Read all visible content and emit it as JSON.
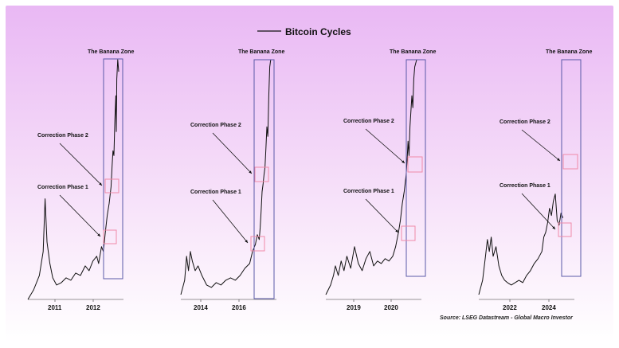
{
  "chart_data": {
    "type": "line",
    "title": "Bitcoin Cycles",
    "source": "Source: LSEG Datastream - Global Macro Investor",
    "colors": {
      "line": "#111111",
      "zone": "#5a5aa8",
      "phase_box": "#f08aa8"
    },
    "panels": [
      {
        "zone_label": "The Banana Zone",
        "phase1_label": "Correction Phase 1",
        "phase2_label": "Correction Phase 2",
        "x_ticks": [
          "2011",
          "2012"
        ],
        "series": [
          [
            0.0,
            0.0
          ],
          [
            0.06,
            0.04
          ],
          [
            0.12,
            0.1
          ],
          [
            0.16,
            0.2
          ],
          [
            0.18,
            0.42
          ],
          [
            0.2,
            0.24
          ],
          [
            0.23,
            0.15
          ],
          [
            0.26,
            0.09
          ],
          [
            0.3,
            0.06
          ],
          [
            0.35,
            0.07
          ],
          [
            0.4,
            0.09
          ],
          [
            0.45,
            0.08
          ],
          [
            0.5,
            0.11
          ],
          [
            0.55,
            0.1
          ],
          [
            0.6,
            0.14
          ],
          [
            0.64,
            0.12
          ],
          [
            0.68,
            0.16
          ],
          [
            0.72,
            0.18
          ],
          [
            0.74,
            0.15
          ],
          [
            0.77,
            0.22
          ],
          [
            0.79,
            0.2
          ],
          [
            0.81,
            0.28
          ],
          [
            0.83,
            0.35
          ],
          [
            0.85,
            0.4
          ],
          [
            0.87,
            0.47
          ],
          [
            0.88,
            0.55
          ],
          [
            0.89,
            0.62
          ],
          [
            0.9,
            0.6
          ],
          [
            0.91,
            0.75
          ],
          [
            0.92,
            0.85
          ],
          [
            0.925,
            0.7
          ],
          [
            0.93,
            0.92
          ],
          [
            0.94,
            1.0
          ],
          [
            0.95,
            0.95
          ]
        ]
      },
      {
        "zone_label": "The Banana Zone",
        "phase1_label": "Correction Phase 1",
        "phase2_label": "Correction Phase 2",
        "x_ticks": [
          "2014",
          "2016"
        ],
        "series": [
          [
            0.0,
            0.02
          ],
          [
            0.04,
            0.08
          ],
          [
            0.06,
            0.18
          ],
          [
            0.08,
            0.12
          ],
          [
            0.1,
            0.2
          ],
          [
            0.12,
            0.16
          ],
          [
            0.15,
            0.12
          ],
          [
            0.18,
            0.14
          ],
          [
            0.22,
            0.1
          ],
          [
            0.27,
            0.06
          ],
          [
            0.32,
            0.05
          ],
          [
            0.37,
            0.07
          ],
          [
            0.42,
            0.06
          ],
          [
            0.47,
            0.08
          ],
          [
            0.52,
            0.09
          ],
          [
            0.57,
            0.08
          ],
          [
            0.62,
            0.1
          ],
          [
            0.67,
            0.13
          ],
          [
            0.72,
            0.15
          ],
          [
            0.75,
            0.2
          ],
          [
            0.78,
            0.23
          ],
          [
            0.8,
            0.27
          ],
          [
            0.82,
            0.25
          ],
          [
            0.83,
            0.3
          ],
          [
            0.84,
            0.37
          ],
          [
            0.85,
            0.45
          ],
          [
            0.86,
            0.48
          ],
          [
            0.87,
            0.52
          ],
          [
            0.88,
            0.55
          ],
          [
            0.89,
            0.63
          ],
          [
            0.9,
            0.72
          ],
          [
            0.91,
            0.68
          ],
          [
            0.92,
            0.85
          ],
          [
            0.93,
            0.97
          ],
          [
            0.94,
            1.0
          ]
        ]
      },
      {
        "zone_label": "The Banana Zone",
        "phase1_label": "Correction Phase 1",
        "phase2_label": "Correction Phase 2",
        "x_ticks": [
          "2019",
          "2020"
        ],
        "series": [
          [
            0.0,
            0.02
          ],
          [
            0.05,
            0.06
          ],
          [
            0.08,
            0.1
          ],
          [
            0.1,
            0.14
          ],
          [
            0.13,
            0.1
          ],
          [
            0.16,
            0.16
          ],
          [
            0.19,
            0.12
          ],
          [
            0.22,
            0.18
          ],
          [
            0.26,
            0.13
          ],
          [
            0.3,
            0.22
          ],
          [
            0.34,
            0.15
          ],
          [
            0.38,
            0.12
          ],
          [
            0.42,
            0.17
          ],
          [
            0.46,
            0.2
          ],
          [
            0.5,
            0.14
          ],
          [
            0.54,
            0.16
          ],
          [
            0.58,
            0.15
          ],
          [
            0.62,
            0.17
          ],
          [
            0.66,
            0.16
          ],
          [
            0.7,
            0.18
          ],
          [
            0.73,
            0.22
          ],
          [
            0.76,
            0.28
          ],
          [
            0.78,
            0.33
          ],
          [
            0.8,
            0.4
          ],
          [
            0.82,
            0.45
          ],
          [
            0.84,
            0.52
          ],
          [
            0.85,
            0.58
          ],
          [
            0.86,
            0.66
          ],
          [
            0.87,
            0.6
          ],
          [
            0.88,
            0.72
          ],
          [
            0.9,
            0.85
          ],
          [
            0.91,
            0.8
          ],
          [
            0.92,
            0.92
          ],
          [
            0.93,
            0.97
          ],
          [
            0.95,
            1.0
          ]
        ]
      },
      {
        "zone_label": "The Banana Zone",
        "phase1_label": "Correction Phase 1",
        "phase2_label": "Correction Phase 2",
        "x_ticks": [
          "2022",
          "2024"
        ],
        "series": [
          [
            0.0,
            0.02
          ],
          [
            0.04,
            0.08
          ],
          [
            0.07,
            0.18
          ],
          [
            0.09,
            0.25
          ],
          [
            0.11,
            0.2
          ],
          [
            0.13,
            0.26
          ],
          [
            0.15,
            0.18
          ],
          [
            0.18,
            0.22
          ],
          [
            0.21,
            0.14
          ],
          [
            0.24,
            0.1
          ],
          [
            0.27,
            0.08
          ],
          [
            0.3,
            0.07
          ],
          [
            0.34,
            0.06
          ],
          [
            0.38,
            0.07
          ],
          [
            0.42,
            0.08
          ],
          [
            0.46,
            0.07
          ],
          [
            0.5,
            0.1
          ],
          [
            0.54,
            0.12
          ],
          [
            0.58,
            0.15
          ],
          [
            0.62,
            0.17
          ],
          [
            0.66,
            0.2
          ],
          [
            0.68,
            0.26
          ],
          [
            0.7,
            0.28
          ],
          [
            0.72,
            0.32
          ],
          [
            0.74,
            0.38
          ],
          [
            0.76,
            0.35
          ],
          [
            0.78,
            0.41
          ],
          [
            0.8,
            0.44
          ],
          [
            0.82,
            0.33
          ],
          [
            0.84,
            0.31
          ],
          [
            0.86,
            0.36
          ],
          [
            0.88,
            0.34
          ]
        ]
      }
    ]
  }
}
